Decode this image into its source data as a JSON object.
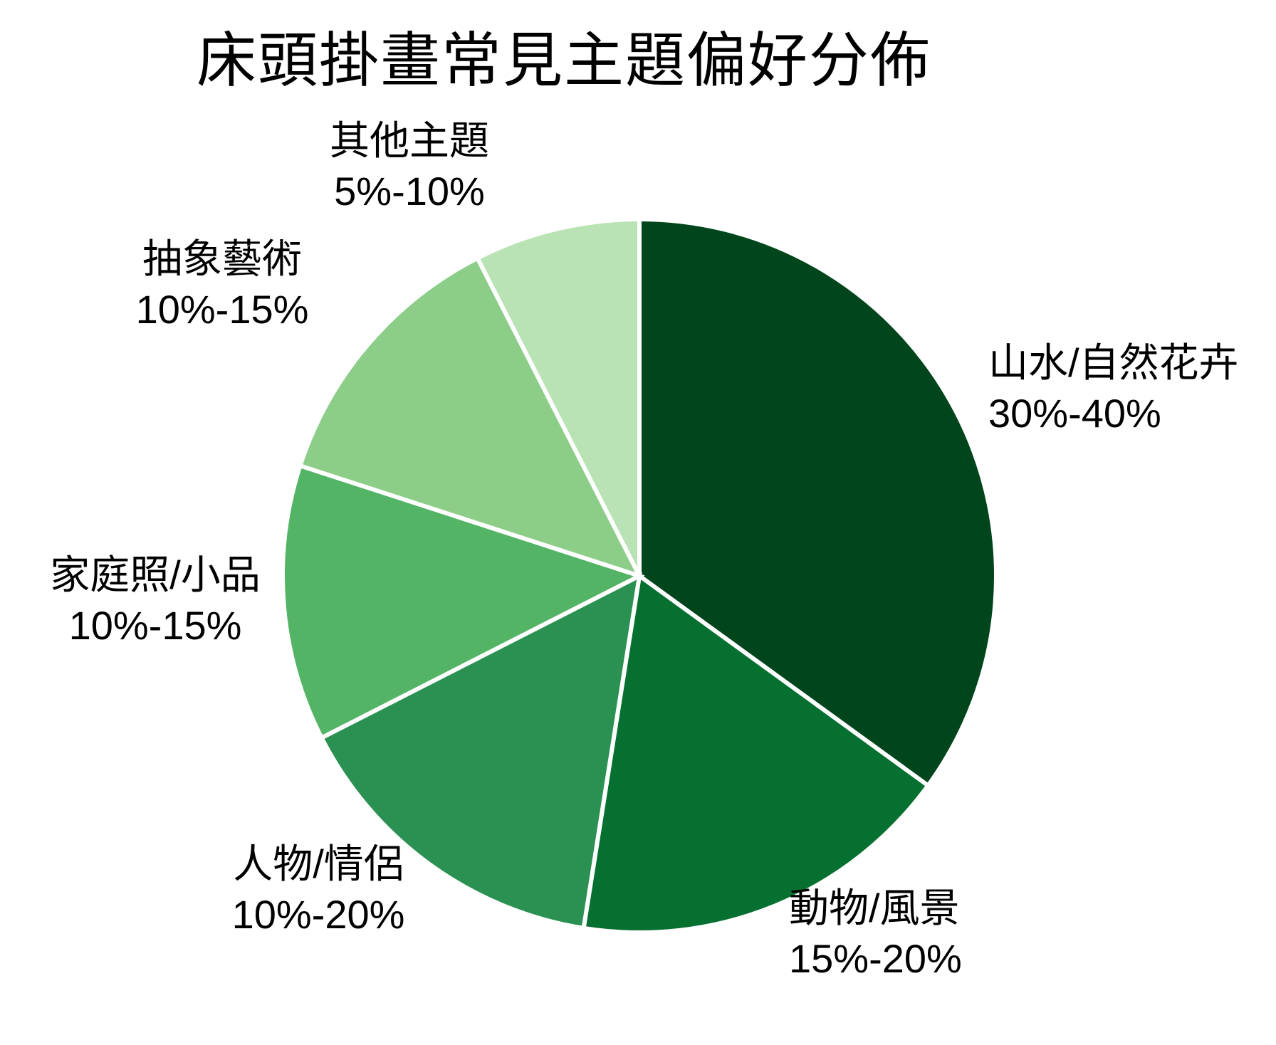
{
  "title": "床頭掛畫常見主題偏好分佈",
  "chart_data": {
    "type": "pie",
    "title": "床頭掛畫常見主題偏好分佈",
    "start_position": "12-o-clock",
    "direction": "clockwise",
    "background": "#ffffff",
    "wedge_border_color": "#ffffff",
    "text_color": "#000000",
    "legend": "none (direct wedge labels)",
    "slices": [
      {
        "label": "山水/自然花卉",
        "range_label": "30%-40%",
        "range_pct": [
          30,
          40
        ],
        "value_pct": 35,
        "color": "#00451c"
      },
      {
        "label": "動物/風景",
        "range_label": "15%-20%",
        "range_pct": [
          15,
          20
        ],
        "value_pct": 17.5,
        "color": "#067030"
      },
      {
        "label": "人物/情侶",
        "range_label": "10%-20%",
        "range_pct": [
          10,
          20
        ],
        "value_pct": 15,
        "color": "#2b9152"
      },
      {
        "label": "家庭照/小品",
        "range_label": "10%-15%",
        "range_pct": [
          10,
          15
        ],
        "value_pct": 12.5,
        "color": "#53b466"
      },
      {
        "label": "抽象藝術",
        "range_label": "10%-15%",
        "range_pct": [
          10,
          15
        ],
        "value_pct": 12.5,
        "color": "#8ccd88"
      },
      {
        "label": "其他主題",
        "range_label": "5%-10%",
        "range_pct": [
          5,
          10
        ],
        "value_pct": 7.5,
        "color": "#b9e3b4"
      }
    ]
  }
}
